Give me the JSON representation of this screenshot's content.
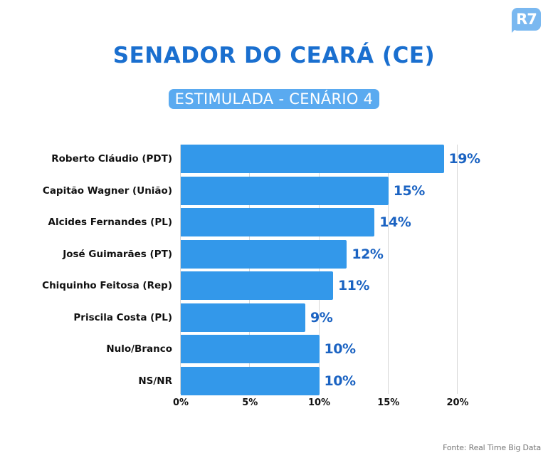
{
  "logo": {
    "text": "R7",
    "color": "#7ab8f0"
  },
  "header": {
    "title": "SENADOR DO CEARÁ (CE)",
    "subtitle": "ESTIMULADA - CENÁRIO 4"
  },
  "source": "Fonte: Real Time Big Data",
  "colors": {
    "title": "#1a6fcf",
    "bar": "#3398ea",
    "value_label": "#1b63c2",
    "subtitle_bg": "#5aaaf0",
    "grid": "#d6d6d6"
  },
  "chart_data": {
    "type": "bar",
    "orientation": "horizontal",
    "title": "SENADOR DO CEARÁ (CE)",
    "subtitle": "ESTIMULADA - CENÁRIO 4",
    "categories": [
      "Roberto Cláudio (PDT)",
      "Capitão Wagner (União)",
      "Alcides Fernandes (PL)",
      "José Guimarães (PT)",
      "Chiquinho Feitosa (Rep)",
      "Priscila Costa (PL)",
      "Nulo/Branco",
      "NS/NR"
    ],
    "values": [
      19,
      15,
      14,
      12,
      11,
      9,
      10,
      10
    ],
    "value_labels": [
      "19%",
      "15%",
      "14%",
      "12%",
      "11%",
      "9%",
      "10%",
      "10%"
    ],
    "xlabel": "",
    "ylabel": "",
    "xlim": [
      0,
      20
    ],
    "xticks": [
      "0%",
      "5%",
      "10%",
      "15%",
      "20%"
    ],
    "grid": true,
    "legend": "none",
    "source": "Fonte: Real Time Big Data"
  }
}
